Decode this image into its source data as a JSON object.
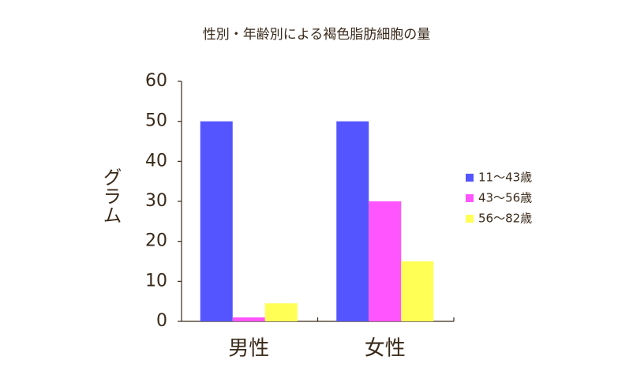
{
  "chart_data": {
    "type": "bar",
    "title": "性別・年齢別による褐色脂肪細胞の量",
    "y_label": "グラム",
    "categories": [
      "男性",
      "女性"
    ],
    "series": [
      {
        "name": "11〜43歳",
        "color": "#5555ff",
        "values": [
          50,
          50
        ]
      },
      {
        "name": "43〜56歳",
        "color": "#ff55ff",
        "values": [
          1,
          30
        ]
      },
      {
        "name": "56〜82歳",
        "color": "#ffff55",
        "values": [
          4.5,
          15
        ]
      }
    ],
    "ylim": [
      0,
      60
    ],
    "yticks": [
      0,
      10,
      20,
      30,
      40,
      50,
      60
    ],
    "legend": "right"
  }
}
